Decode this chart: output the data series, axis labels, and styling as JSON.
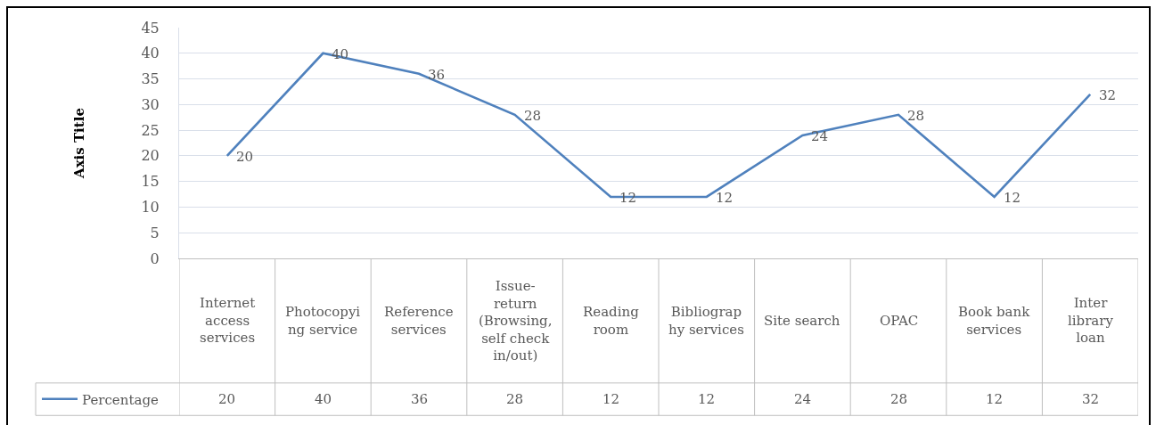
{
  "chart_data": {
    "type": "line",
    "ylabel": "Axis Title",
    "categories": [
      "Internet access services",
      "Photocopying service",
      "Reference services",
      "Issue-return (Browsing, self check in/out)",
      "Reading room",
      "Bibliography services",
      "Site search",
      "OPAC",
      "Book bank services",
      "Inter library loan"
    ],
    "series": [
      {
        "name": "Percentage",
        "color": "#4f81bd",
        "values": [
          20,
          40,
          36,
          28,
          12,
          12,
          24,
          28,
          12,
          32
        ]
      }
    ],
    "ylim": [
      0,
      45
    ],
    "yticks": [
      0,
      5,
      10,
      15,
      20,
      25,
      30,
      35,
      40,
      45
    ],
    "grid": "y",
    "legend": "bottom left",
    "data_labels": true,
    "annotations": [
      {
        "text": "20",
        "x": "Internet access services",
        "y": 20
      },
      {
        "text": "40",
        "x": "Photocopying service",
        "y": 40
      },
      {
        "text": "36",
        "x": "Reference services",
        "y": 36
      },
      {
        "text": "28",
        "x": "Issue-return (Browsing, self check in/out)",
        "y": 28
      },
      {
        "text": "12",
        "x": "Reading room",
        "y": 12
      },
      {
        "text": "12",
        "x": "Bibliography services",
        "y": 12
      },
      {
        "text": "24",
        "x": "Site search",
        "y": 24
      },
      {
        "text": "28",
        "x": "OPAC",
        "y": 28
      },
      {
        "text": "12",
        "x": "Book bank services",
        "y": 12
      },
      {
        "text": "32",
        "x": "Inter library loan",
        "y": 32
      }
    ]
  }
}
